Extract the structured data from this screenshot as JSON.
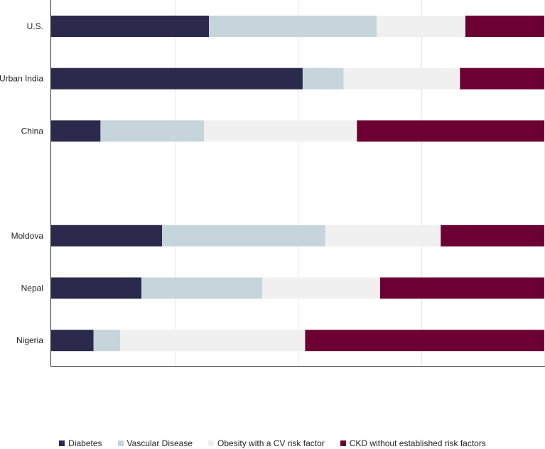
{
  "chart_data": {
    "type": "bar",
    "orientation": "horizontal",
    "stacked": true,
    "normalized": true,
    "categories": [
      "U.S.",
      "Urban India",
      "China",
      "",
      "Moldova",
      "Nepal",
      "Nigeria"
    ],
    "xlim": [
      0,
      100
    ],
    "grid": true,
    "legend_position": "bottom",
    "series": [
      {
        "name": "Diabetes",
        "color": "#2b2a4c",
        "values": [
          32,
          51,
          10,
          null,
          22.5,
          18.3,
          8.6
        ]
      },
      {
        "name": "Vascular Disease",
        "color": "#c6d5db",
        "values": [
          34,
          8.3,
          21,
          null,
          33.1,
          24.5,
          5.4
        ]
      },
      {
        "name": "Obesity with a CV risk factor",
        "color": "#f0f0f0",
        "values": [
          18,
          23.6,
          31,
          null,
          23.4,
          23.9,
          37.5
        ]
      },
      {
        "name": "CKD without established risk factors",
        "color": "#6c0032",
        "values": [
          16,
          17.1,
          38,
          null,
          21,
          33.3,
          48.5
        ]
      }
    ]
  }
}
